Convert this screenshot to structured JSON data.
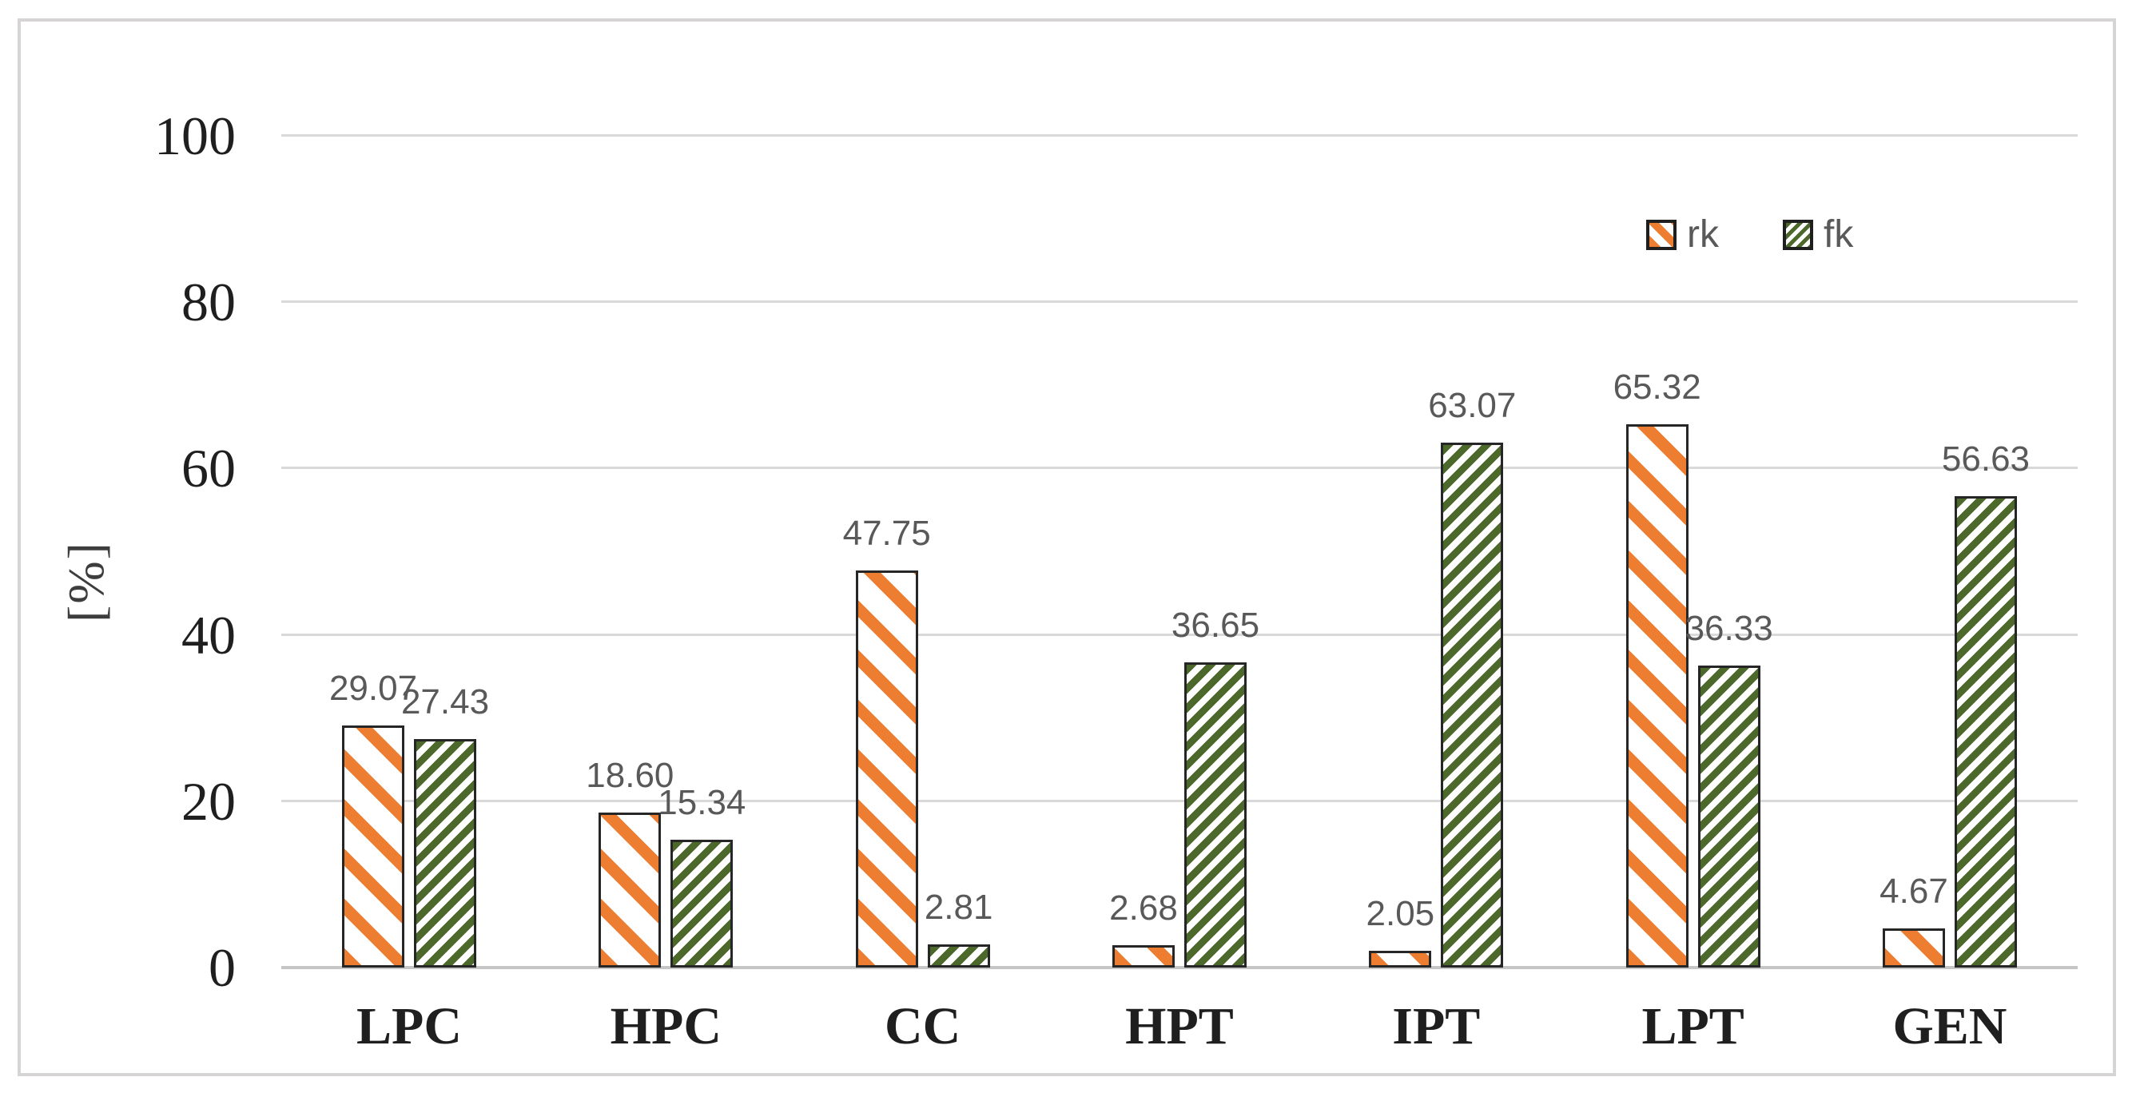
{
  "chart_data": {
    "type": "bar",
    "title": "",
    "xlabel": "",
    "ylabel": "[%]",
    "categories": [
      "LPC",
      "HPC",
      "CC",
      "HPT",
      "IPT",
      "LPT",
      "GEN"
    ],
    "series": [
      {
        "name": "rk",
        "values": [
          29.07,
          18.6,
          47.75,
          2.68,
          2.05,
          65.32,
          4.67
        ],
        "stripe_color": "#ED7D31",
        "fill_background": "#FFFFFF",
        "hatch_direction": "backslash"
      },
      {
        "name": "fk",
        "values": [
          27.43,
          15.34,
          2.81,
          36.65,
          63.07,
          36.33,
          56.63
        ],
        "stripe_color": "#4C682B",
        "fill_background": "#FFFFFF",
        "hatch_direction": "slash"
      }
    ],
    "yticks": [
      0,
      20,
      40,
      60,
      80,
      100
    ],
    "ylim": [
      0,
      100
    ],
    "grid": true,
    "legend_position": "top-right",
    "value_label_decimals": 2,
    "colors": {
      "gridline": "#D9D9D9",
      "baseline": "#C6C6C6",
      "axis_text": "#1F1F1F",
      "value_label_text": "#595959",
      "bar_border": "#262626",
      "frame_border": "#D6D4D4",
      "background": "#FFFFFF"
    }
  }
}
